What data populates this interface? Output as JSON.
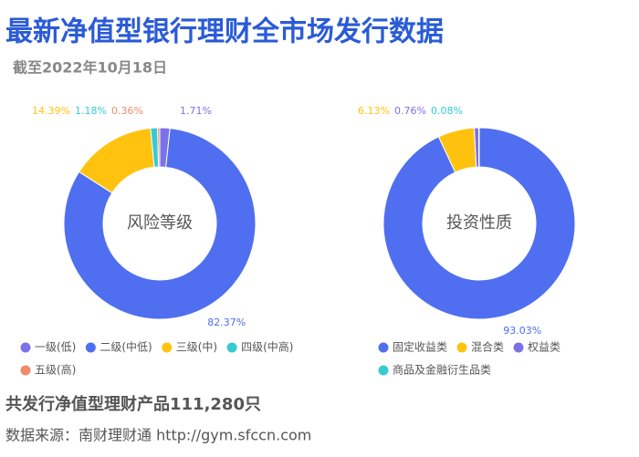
{
  "header": {
    "title": "最新净值型银行理财全市场发行数据",
    "subtitle": "截至2022年10月18日"
  },
  "footer": {
    "summary": "共发行净值型理财产品111,280只",
    "source": "数据来源：南财理财通 http://gym.sfccn.com"
  },
  "chart_data": [
    {
      "type": "pie",
      "center_label": "风险等级",
      "categories": [
        "一级(低)",
        "二级(中低)",
        "三级(中)",
        "四级(中高)",
        "五级(高)"
      ],
      "values": [
        1.71,
        82.37,
        14.39,
        1.18,
        0.36
      ],
      "value_labels": [
        "1.71%",
        "82.37%",
        "14.39%",
        "1.18%",
        "0.36%"
      ],
      "colors": [
        "#7b72ea",
        "#4f6ff0",
        "#ffc30f",
        "#36cbd3",
        "#f3896b"
      ]
    },
    {
      "type": "pie",
      "center_label": "投资性质",
      "categories": [
        "固定收益类",
        "混合类",
        "权益类",
        "商品及金融衍生品类"
      ],
      "values": [
        93.03,
        6.13,
        0.76,
        0.08
      ],
      "value_labels": [
        "93.03%",
        "6.13%",
        "0.76%",
        "0.08%"
      ],
      "colors": [
        "#4f6ff0",
        "#ffc30f",
        "#7b72ea",
        "#36cbd3"
      ]
    }
  ]
}
